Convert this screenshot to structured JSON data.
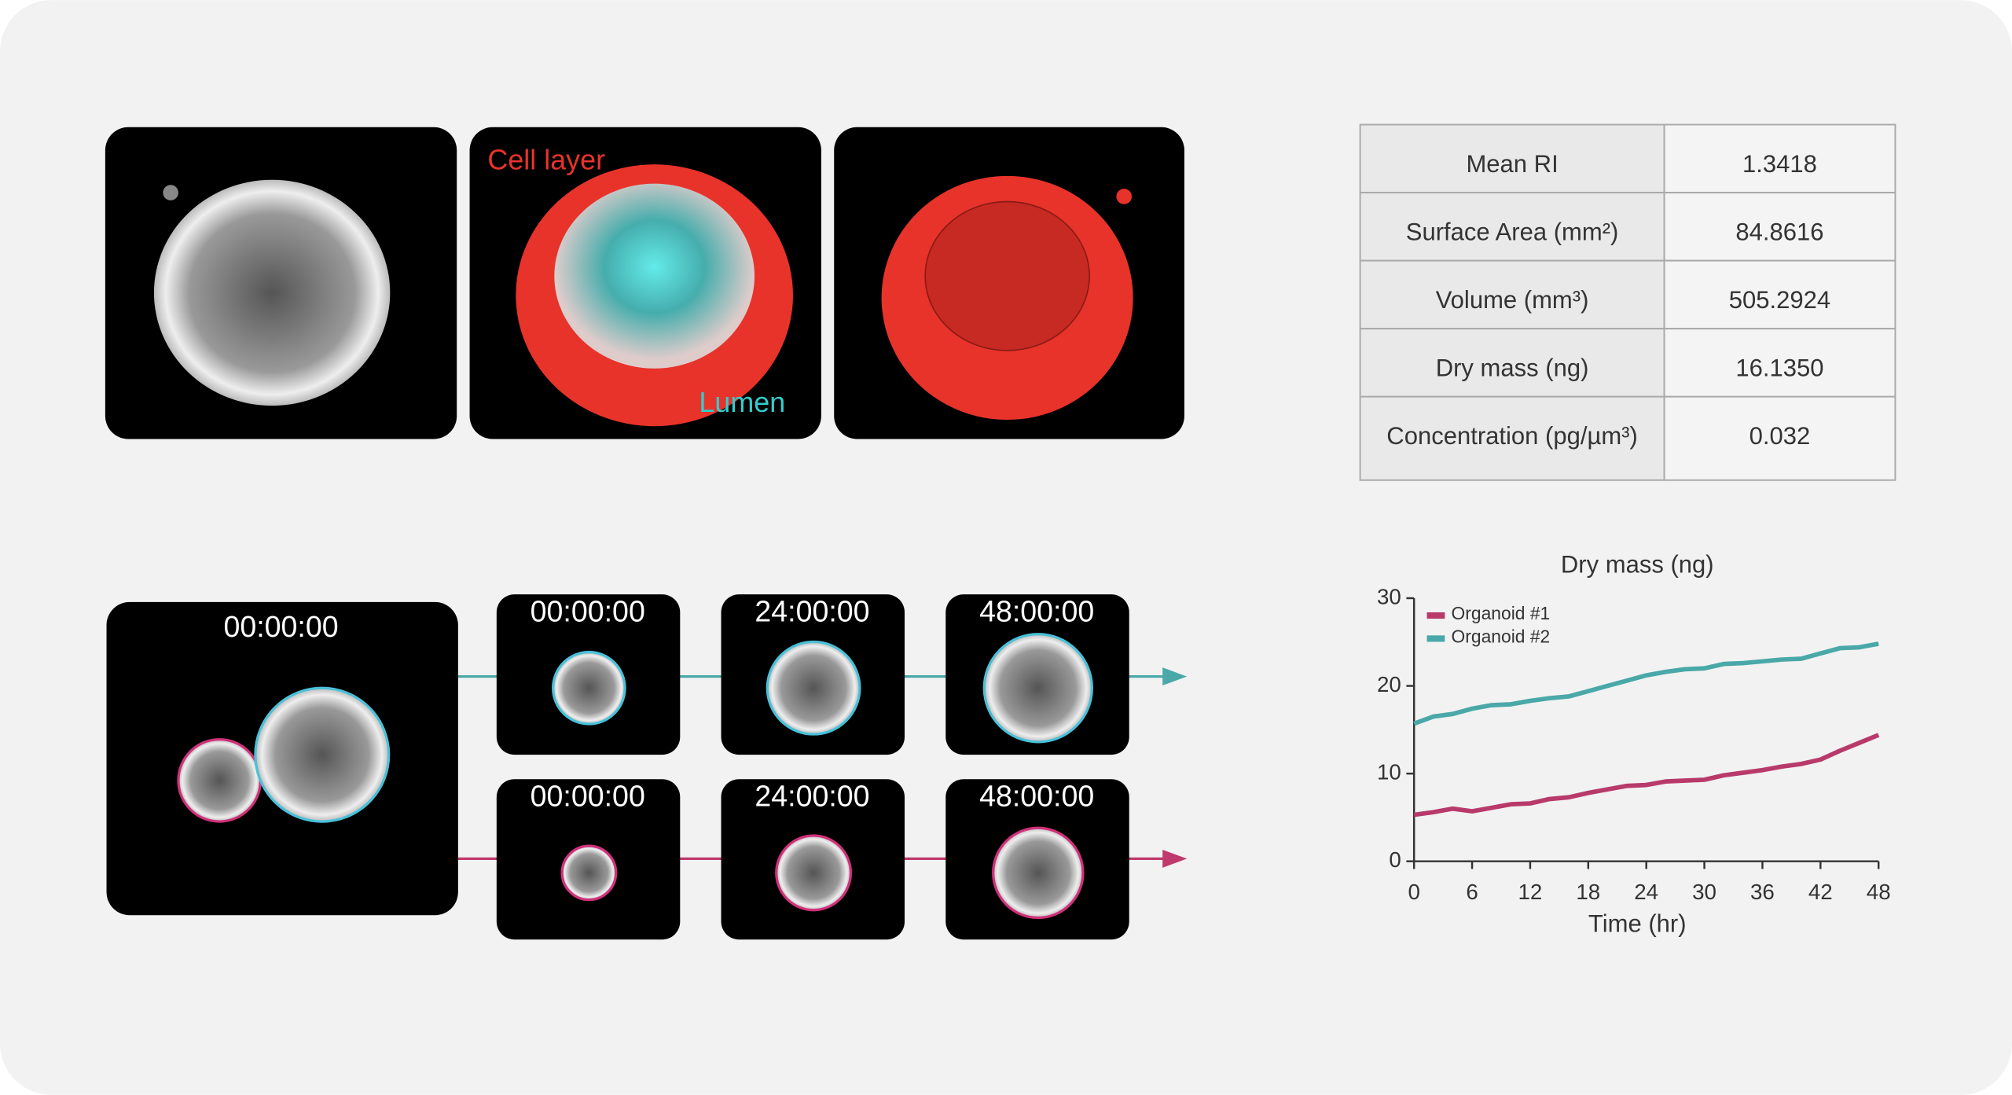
{
  "images": {
    "cell_layer_label": "Cell layer",
    "lumen_label": "Lumen",
    "overview_timestamp": "00:00:00",
    "rows": [
      [
        "00:00:00",
        "24:00:00",
        "48:00:00"
      ],
      [
        "00:00:00",
        "24:00:00",
        "48:00:00"
      ]
    ]
  },
  "table": {
    "rows": [
      [
        "Mean RI",
        "1.3418"
      ],
      [
        "Surface Area (mm²)",
        "84.8616"
      ],
      [
        "Volume (mm³)",
        "505.2924"
      ],
      [
        "Dry mass (ng)",
        "16.1350"
      ],
      [
        "Concentration (pg/µm³)",
        "0.032"
      ]
    ]
  },
  "chart_data": {
    "type": "line",
    "title": "Dry mass (ng)",
    "x_label": "Time (hr)",
    "x": [
      0,
      2,
      4,
      6,
      8,
      10,
      12,
      14,
      16,
      18,
      20,
      22,
      24,
      26,
      28,
      30,
      32,
      34,
      36,
      38,
      40,
      42,
      44,
      46,
      48
    ],
    "series": [
      {
        "name": "Organoid #1",
        "color": "#b83a6a",
        "values": [
          5.3,
          5.6,
          6,
          5.7,
          6.1,
          6.5,
          6.6,
          7.1,
          7.3,
          7.8,
          8.2,
          8.6,
          8.7,
          9.1,
          9.2,
          9.3,
          9.8,
          10.1,
          10.4,
          10.8,
          11.1,
          11.6,
          12.6,
          13.5,
          14.4
        ]
      },
      {
        "name": "Organoid #2",
        "color": "#4aa8a8",
        "values": [
          15.7,
          16.5,
          16.8,
          17.4,
          17.8,
          17.9,
          18.3,
          18.6,
          18.8,
          19.4,
          20.0,
          20.6,
          21.2,
          21.6,
          21.9,
          22.0,
          22.5,
          22.6,
          22.8,
          23.0,
          23.1,
          23.7,
          24.3,
          24.4,
          24.8
        ]
      }
    ],
    "xlim": [
      0,
      48
    ],
    "xticks": [
      0,
      6,
      12,
      18,
      24,
      30,
      36,
      42,
      48
    ],
    "ylim": [
      0,
      30
    ],
    "yticks": [
      0,
      10,
      20,
      30
    ],
    "legend": "upper left"
  }
}
